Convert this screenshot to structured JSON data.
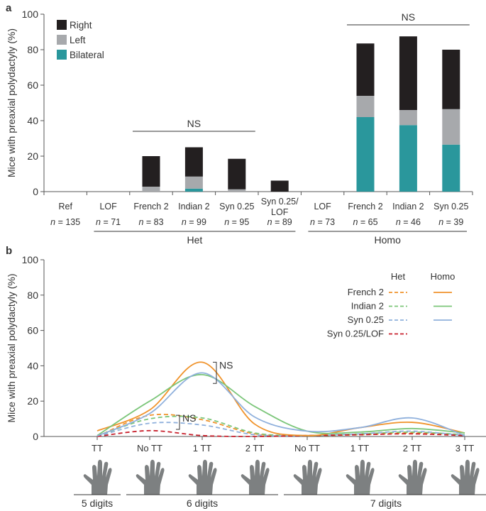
{
  "chart_data": [
    {
      "panel_label": "a",
      "type": "bar",
      "stacked": true,
      "ylabel": "Mice with preaxial polydactyly (%)",
      "ylim": [
        0,
        100
      ],
      "yticks": [
        "0",
        "20",
        "40",
        "60",
        "80",
        "100"
      ],
      "legend": {
        "position": "top-left",
        "entries": [
          {
            "name": "Right",
            "color": "#231f20"
          },
          {
            "name": "Left",
            "color": "#a7a9ac"
          },
          {
            "name": "Bilateral",
            "color": "#2a979c"
          }
        ]
      },
      "categories": [
        {
          "label": "Ref",
          "n": "n = 135",
          "group": ""
        },
        {
          "label": "LOF",
          "n": "n = 71",
          "group": "Het"
        },
        {
          "label": "French 2",
          "n": "n = 83",
          "group": "Het"
        },
        {
          "label": "Indian 2",
          "n": "n = 99",
          "group": "Het"
        },
        {
          "label": "Syn 0.25",
          "n": "n = 95",
          "group": "Het"
        },
        {
          "label": "Syn 0.25/\nLOF",
          "n": "n = 89",
          "group": "Het"
        },
        {
          "label": "LOF",
          "n": "n = 73",
          "group": "Homo"
        },
        {
          "label": "French 2",
          "n": "n = 65",
          "group": "Homo"
        },
        {
          "label": "Indian 2",
          "n": "n = 46",
          "group": "Homo"
        },
        {
          "label": "Syn 0.25",
          "n": "n = 39",
          "group": "Homo"
        }
      ],
      "series": [
        {
          "name": "Bilateral",
          "values": [
            0,
            0,
            0,
            1.7,
            0,
            0,
            0,
            42,
            37.5,
            26.5
          ]
        },
        {
          "name": "Left",
          "values": [
            0,
            0,
            2.8,
            6.8,
            1.3,
            0,
            0,
            12,
            8.5,
            20
          ]
        },
        {
          "name": "Right",
          "values": [
            0,
            0,
            17.2,
            16.5,
            17.2,
            6.2,
            0,
            29.5,
            41.5,
            33.5
          ]
        }
      ],
      "groups": [
        {
          "label": "Het",
          "from": 1,
          "to": 5
        },
        {
          "label": "Homo",
          "from": 6,
          "to": 9
        }
      ],
      "annotations": [
        {
          "text": "NS",
          "from": 2,
          "to": 4,
          "y": 34
        },
        {
          "text": "NS",
          "from": 7,
          "to": 9,
          "y": 94
        }
      ]
    },
    {
      "panel_label": "b",
      "type": "line",
      "ylabel": "Mice with preaxial polydactyly (%)",
      "ylim": [
        0,
        100
      ],
      "yticks": [
        "0",
        "20",
        "40",
        "60",
        "80",
        "100"
      ],
      "x": [
        "TT",
        "No TT",
        "1 TT",
        "2 TT",
        "No TT",
        "1 TT",
        "2 TT",
        "3 TT"
      ],
      "x_groups": [
        {
          "label": "5 digits",
          "from": 0,
          "to": 0
        },
        {
          "label": "6 digits",
          "from": 1,
          "to": 3
        },
        {
          "label": "7 digits",
          "from": 4,
          "to": 7
        }
      ],
      "legend": {
        "position": "top-right",
        "column_headers": [
          "Het",
          "Homo"
        ],
        "rows": [
          "French 2",
          "Indian 2",
          "Syn 0.25",
          "Syn 0.25/LOF"
        ]
      },
      "series": [
        {
          "name": "French 2 Homo",
          "style": "solid",
          "color": "#f0932b",
          "values": [
            3.2,
            15,
            42,
            7,
            0.5,
            5,
            8,
            2
          ]
        },
        {
          "name": "Indian 2 Homo",
          "style": "solid",
          "color": "#7cc67a",
          "values": [
            0.5,
            20,
            35,
            17,
            3,
            2.5,
            4.5,
            2
          ]
        },
        {
          "name": "Syn 0.25 Homo",
          "style": "solid",
          "color": "#8fb0dc",
          "values": [
            0.3,
            13,
            36,
            11,
            3,
            5,
            10.5,
            0.5
          ]
        },
        {
          "name": "French 2 Het",
          "style": "dashed",
          "color": "#f0932b",
          "values": [
            0,
            12,
            9.5,
            1.5,
            0.5,
            1,
            2,
            1
          ]
        },
        {
          "name": "Indian 2 Het",
          "style": "dashed",
          "color": "#7cc67a",
          "values": [
            0,
            10,
            10.5,
            2,
            0.5,
            1.5,
            2.5,
            1
          ]
        },
        {
          "name": "Syn 0.25 Het",
          "style": "dashed",
          "color": "#8fb0dc",
          "values": [
            0,
            7.5,
            6.5,
            1,
            0.5,
            1.5,
            3,
            0.5
          ]
        },
        {
          "name": "Syn 0.25/LOF Het",
          "style": "dashed",
          "color": "#c8202c",
          "values": [
            0,
            3.3,
            0.5,
            0,
            0.5,
            1,
            1.5,
            0.5
          ]
        }
      ],
      "annotations": [
        {
          "text": "NS",
          "x_index": 2,
          "y_range": [
            30,
            42
          ]
        },
        {
          "text": "NS",
          "x_index": 1.6,
          "y_range": [
            4,
            12
          ]
        }
      ]
    }
  ]
}
